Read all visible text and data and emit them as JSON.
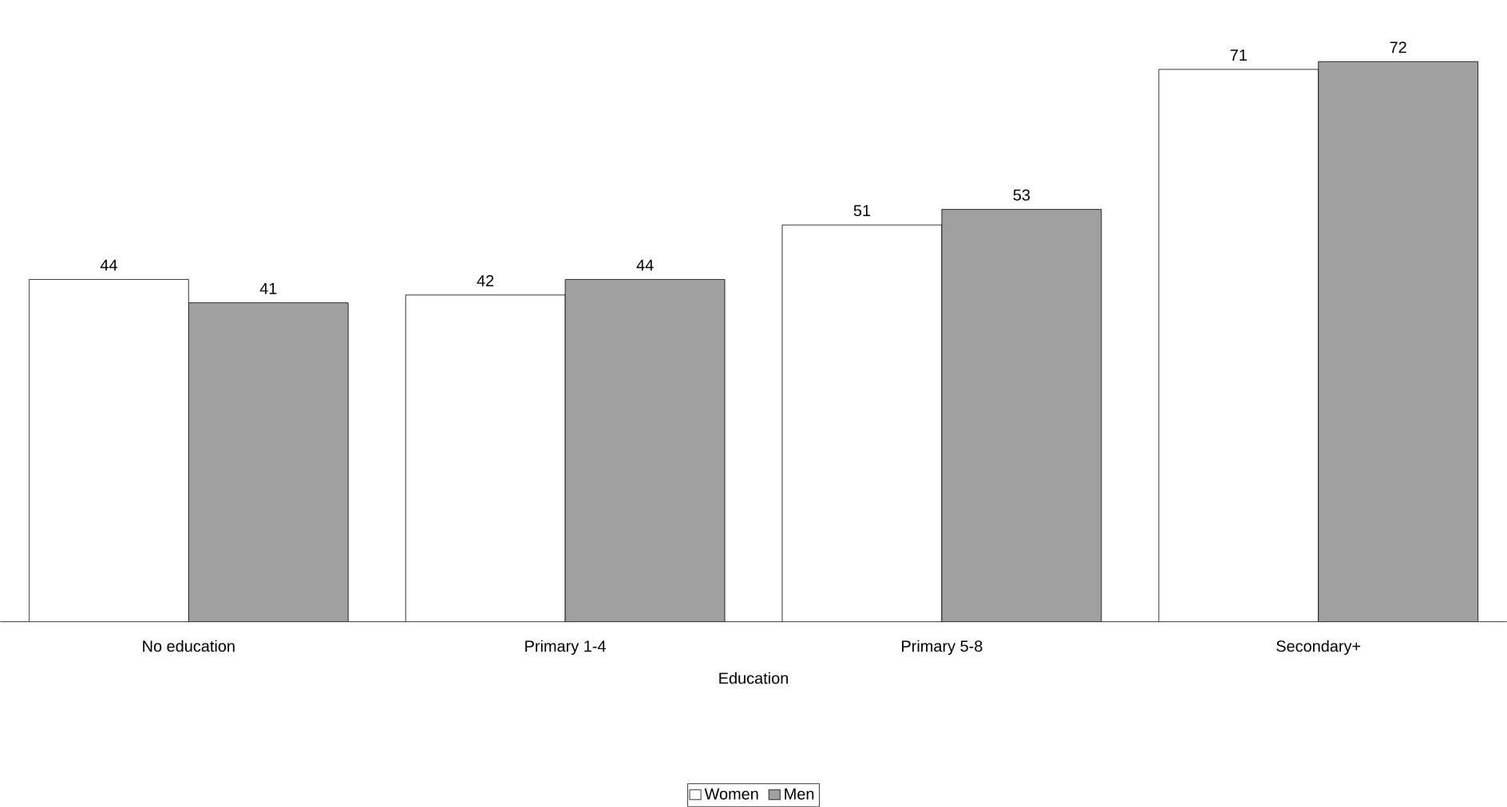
{
  "chart_data": {
    "type": "bar",
    "xlabel": "Education",
    "categories": [
      "No education",
      "Primary 1-4",
      "Primary 5-8",
      "Secondary+"
    ],
    "series": [
      {
        "name": "Women",
        "color": "#ffffff",
        "values": [
          44,
          42,
          51,
          71
        ]
      },
      {
        "name": "Men",
        "color": "#a0a0a0",
        "values": [
          41,
          44,
          53,
          72
        ]
      }
    ],
    "data_labels": true,
    "legend": "bottom"
  }
}
